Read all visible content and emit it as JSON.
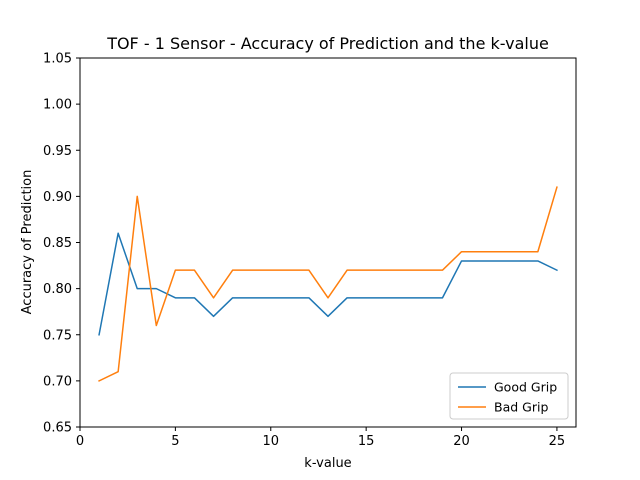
{
  "chart_data": {
    "type": "line",
    "title": "TOF - 1 Sensor - Accuracy of Prediction and the k-value",
    "xlabel": "k-value",
    "ylabel": "Accuracy of Prediction",
    "xlim": [
      0,
      26
    ],
    "ylim": [
      0.65,
      1.05
    ],
    "xticks": [
      0,
      5,
      10,
      15,
      20,
      25
    ],
    "yticks": [
      0.65,
      0.7,
      0.75,
      0.8,
      0.85,
      0.9,
      0.95,
      1.0,
      1.05
    ],
    "grid": false,
    "legend_position": "lower-right",
    "x": [
      1,
      2,
      3,
      4,
      5,
      6,
      7,
      8,
      9,
      10,
      11,
      12,
      13,
      14,
      15,
      16,
      17,
      18,
      19,
      20,
      21,
      22,
      23,
      24,
      25
    ],
    "series": [
      {
        "name": "Good Grip",
        "color": "#1f77b4",
        "values": [
          0.75,
          0.86,
          0.8,
          0.8,
          0.79,
          0.79,
          0.77,
          0.79,
          0.79,
          0.79,
          0.79,
          0.79,
          0.77,
          0.79,
          0.79,
          0.79,
          0.79,
          0.79,
          0.79,
          0.83,
          0.83,
          0.83,
          0.83,
          0.83,
          0.82
        ]
      },
      {
        "name": "Bad Grip",
        "color": "#ff7f0e",
        "values": [
          0.7,
          0.71,
          0.9,
          0.76,
          0.82,
          0.82,
          0.79,
          0.82,
          0.82,
          0.82,
          0.82,
          0.82,
          0.79,
          0.82,
          0.82,
          0.82,
          0.82,
          0.82,
          0.82,
          0.84,
          0.84,
          0.84,
          0.84,
          0.84,
          0.91
        ]
      }
    ]
  }
}
